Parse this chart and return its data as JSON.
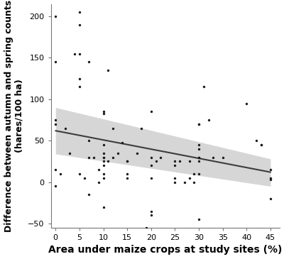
{
  "title": "",
  "xlabel": "Area under maize crops at study sites (%)",
  "ylabel": "Difference between autumn and spring counts\n(hares/100 ha)",
  "xlim": [
    -1,
    47
  ],
  "ylim": [
    -55,
    215
  ],
  "xticks": [
    0,
    5,
    10,
    15,
    20,
    25,
    30,
    35,
    40,
    45
  ],
  "yticks": [
    -50,
    0,
    50,
    100,
    150,
    200
  ],
  "scatter_x": [
    0,
    0,
    0,
    0,
    0,
    0,
    1,
    2,
    3,
    4,
    5,
    5,
    5,
    5,
    5,
    5,
    6,
    7,
    7,
    7,
    7,
    8,
    9,
    9,
    10,
    10,
    10,
    10,
    10,
    10,
    10,
    10,
    10,
    10,
    10,
    11,
    11,
    12,
    12,
    13,
    14,
    15,
    15,
    15,
    15,
    17,
    18,
    19,
    20,
    20,
    20,
    20,
    20,
    20,
    21,
    22,
    25,
    25,
    25,
    25,
    26,
    27,
    28,
    28,
    29,
    29,
    30,
    30,
    30,
    30,
    30,
    30,
    30,
    30,
    30,
    31,
    32,
    33,
    35,
    40,
    42,
    43,
    43,
    45,
    45,
    45,
    45
  ],
  "scatter_y": [
    200,
    145,
    75,
    70,
    15,
    -5,
    10,
    65,
    35,
    155,
    205,
    190,
    155,
    125,
    115,
    10,
    5,
    145,
    50,
    30,
    -15,
    30,
    0,
    15,
    85,
    83,
    45,
    35,
    30,
    30,
    25,
    20,
    10,
    5,
    -30,
    135,
    25,
    65,
    30,
    35,
    48,
    25,
    25,
    10,
    5,
    35,
    65,
    -55,
    85,
    30,
    -35,
    -40,
    20,
    5,
    25,
    30,
    25,
    20,
    5,
    0,
    25,
    0,
    25,
    5,
    10,
    0,
    70,
    70,
    45,
    40,
    30,
    30,
    25,
    10,
    -45,
    115,
    75,
    30,
    30,
    95,
    50,
    45,
    45,
    15,
    5,
    -20,
    3
  ],
  "reg_x0": 0,
  "reg_x1": 45,
  "reg_y0": 62,
  "reg_y1": 12,
  "ci_upper_y0": 90,
  "ci_upper_y1": 28,
  "ci_lower_y0": 34,
  "ci_lower_y1": -5,
  "line_color": "#3d3d3d",
  "fill_color": "#cccccc",
  "scatter_color": "#1a1a1a",
  "background_color": "#ffffff",
  "marker_size": 6,
  "xlabel_fontsize": 10,
  "ylabel_fontsize": 9,
  "tick_fontsize": 8
}
